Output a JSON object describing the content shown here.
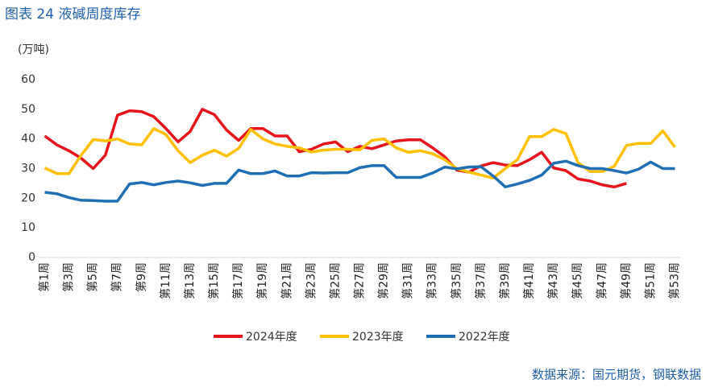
{
  "chart_data": {
    "type": "line",
    "title": "图表 24  液碱周度库存",
    "y_label": "(万吨)",
    "source": "数据来源：国元期货，钢联数据",
    "categories": [
      "第1周",
      null,
      "第3周",
      null,
      "第5周",
      null,
      "第7周",
      null,
      "第9周",
      null,
      "第11周",
      null,
      "第13周",
      null,
      "第15周",
      null,
      "第17周",
      null,
      "第19周",
      null,
      "第21周",
      null,
      "第23周",
      null,
      "第25周",
      null,
      "第27周",
      null,
      "第29周",
      null,
      "第31周",
      null,
      "第33周",
      null,
      "第35周",
      null,
      "第37周",
      null,
      "第39周",
      null,
      "第41周",
      null,
      "第43周",
      null,
      "第45周",
      null,
      "第47周",
      null,
      "第49周",
      null,
      "第51周",
      null,
      "第53周"
    ],
    "series": [
      {
        "name": "2024年度",
        "color": "#e8141b",
        "values": [
          41,
          38,
          36,
          33.5,
          30,
          34.5,
          48,
          49.5,
          49.2,
          47.5,
          43.5,
          39,
          42.5,
          50,
          48.2,
          43,
          39.5,
          43.5,
          43.5,
          41,
          41,
          35.7,
          36.5,
          38.3,
          39,
          35.7,
          37.5,
          36.7,
          38,
          39.3,
          39.7,
          39.7,
          37,
          34,
          29.5,
          28.8,
          30.9,
          32,
          31.2,
          31,
          33,
          35.5,
          30.2,
          29.3,
          26.5,
          25.8,
          24.5,
          23.8,
          25,
          null,
          null,
          null,
          null
        ]
      },
      {
        "name": "2023年度",
        "color": "#ffc000",
        "values": [
          30.2,
          28.3,
          28.3,
          34.5,
          39.8,
          39.3,
          40,
          38.3,
          38,
          43.5,
          41.5,
          36,
          32,
          34.5,
          36.2,
          34.2,
          36.8,
          43.2,
          40,
          38.3,
          37.5,
          37,
          35.6,
          36.2,
          36.5,
          36.5,
          36.3,
          39.5,
          40,
          37,
          35.5,
          36,
          35,
          33,
          30,
          28.8,
          27.8,
          26.8,
          30,
          33,
          40.8,
          40.8,
          43.2,
          41.8,
          32,
          29,
          29,
          30.8,
          37.8,
          38.5,
          38.5,
          42.7,
          37.2
        ]
      },
      {
        "name": "2022年度",
        "color": "#1f6fb5",
        "values": [
          22,
          21.5,
          20.2,
          19.3,
          19.2,
          19,
          19,
          24.8,
          25.3,
          24.5,
          25.3,
          25.8,
          25.2,
          24.3,
          25,
          25,
          29.5,
          28.3,
          28.3,
          29.2,
          27.5,
          27.5,
          28.6,
          28.5,
          28.6,
          28.6,
          30.3,
          31,
          31,
          27,
          27,
          27,
          28.5,
          30.5,
          29.9,
          30.5,
          30.6,
          27.5,
          23.8,
          24.8,
          26,
          27.8,
          31.8,
          32.5,
          31,
          30,
          30,
          29.3,
          28.5,
          29.8,
          32.2,
          30,
          30
        ]
      }
    ],
    "ylim": [
      0,
      60
    ],
    "yticks": [
      0,
      10,
      20,
      30,
      40,
      50,
      60
    ],
    "grid": false,
    "legend": "bottom"
  }
}
